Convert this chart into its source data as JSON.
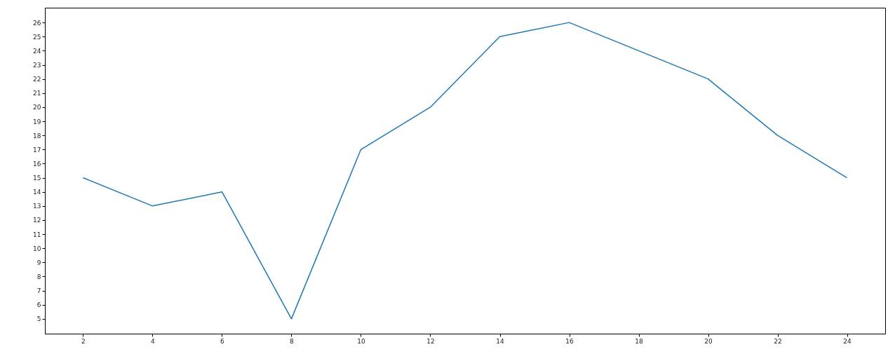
{
  "chart_data": {
    "type": "line",
    "x": [
      2,
      4,
      6,
      8,
      10,
      12,
      14,
      16,
      18,
      20,
      22,
      24
    ],
    "series": [
      {
        "color": "#1f77b4",
        "values": [
          15,
          13,
          14,
          5,
          17,
          20,
          25,
          26,
          24,
          22,
          18,
          15
        ]
      }
    ],
    "xlim": [
      0.9,
      25.1
    ],
    "ylim": [
      3.95,
      27.05
    ],
    "xticks": [
      2,
      4,
      6,
      8,
      10,
      12,
      14,
      16,
      18,
      20,
      22,
      24
    ],
    "yticks": [
      5,
      6,
      7,
      8,
      9,
      10,
      11,
      12,
      13,
      14,
      15,
      16,
      17,
      18,
      19,
      20,
      21,
      22,
      23,
      24,
      25,
      26
    ]
  }
}
